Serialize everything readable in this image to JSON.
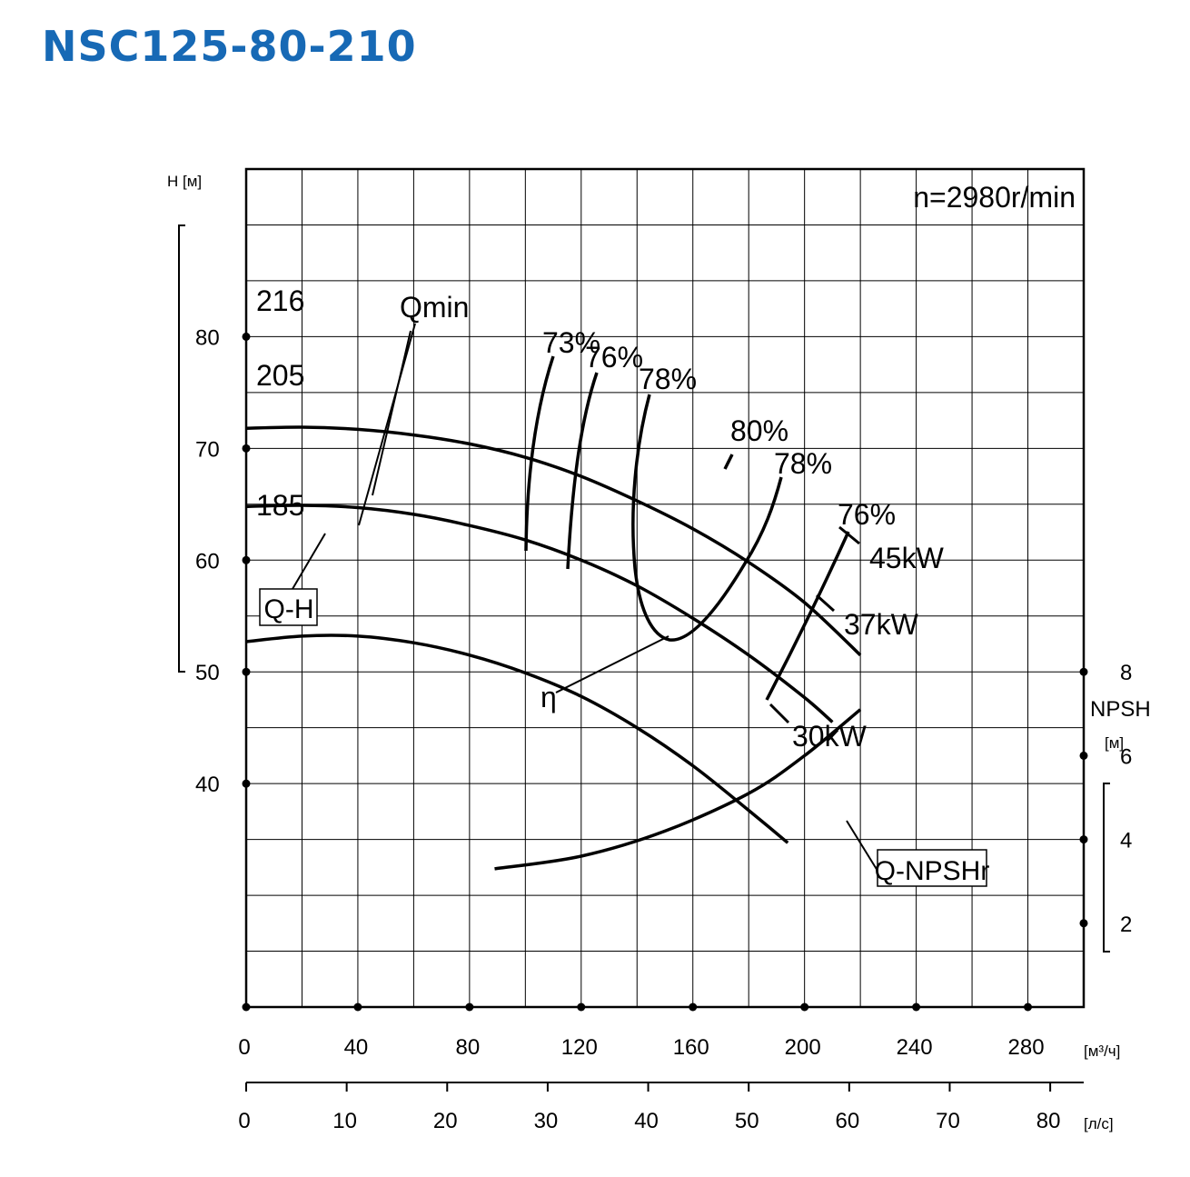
{
  "title": "NSC125-80-210",
  "chart_data": {
    "type": "line",
    "speed_note": "n=2980r/min",
    "xlabel_primary": "[м³/ч]",
    "xlabel_secondary": "[л/с]",
    "ylabel_head": "H [м]",
    "ylabel_npsh": "NPSH",
    "ylabel_npsh_unit": "[м]",
    "x_ticks_m3h": [
      0,
      40,
      80,
      120,
      160,
      200,
      240,
      280
    ],
    "x_ticks_ls": [
      0,
      10,
      20,
      30,
      40,
      50,
      60,
      70,
      80
    ],
    "y_ticks_head": [
      40,
      50,
      60,
      70,
      80
    ],
    "y_ticks_npsh": [
      2,
      4,
      6,
      8
    ],
    "xlim": [
      0,
      300
    ],
    "ylim_head": [
      20,
      95
    ],
    "ylim_npsh": [
      0,
      20
    ],
    "grid": true,
    "series": [
      {
        "name": "216",
        "x": [
          0,
          20,
          40,
          60,
          80,
          100,
          120,
          140,
          160,
          180,
          200,
          220
        ],
        "y": [
          71.8,
          71.9,
          71.7,
          71.2,
          70.4,
          69.2,
          67.5,
          65.3,
          62.8,
          59.8,
          56.2,
          51.5
        ]
      },
      {
        "name": "205",
        "x": [
          0,
          20,
          40,
          60,
          80,
          100,
          120,
          140,
          160,
          180,
          200,
          210
        ],
        "y": [
          64.8,
          64.9,
          64.7,
          64.1,
          63.1,
          61.8,
          60.0,
          57.7,
          54.8,
          51.5,
          47.7,
          45.5
        ]
      },
      {
        "name": "185",
        "x": [
          0,
          20,
          40,
          60,
          80,
          100,
          120,
          140,
          160,
          180,
          194
        ],
        "y": [
          52.7,
          53.2,
          53.2,
          52.6,
          51.5,
          49.9,
          47.8,
          45.0,
          41.6,
          37.6,
          34.7
        ]
      },
      {
        "name": "Q-NPSHr",
        "axis": "npsh",
        "x": [
          89,
          120,
          150,
          180,
          200,
          220
        ],
        "y": [
          3.3,
          3.6,
          4.2,
          5.1,
          6.0,
          7.1
        ]
      }
    ],
    "efficiency_labels": [
      "73%",
      "76%",
      "78%",
      "80%",
      "78%",
      "76%"
    ],
    "power_labels": [
      "45kW",
      "37kW",
      "30kW"
    ],
    "annotations": [
      "Qmin",
      "Q-H",
      "η",
      "Q-NPSHr"
    ]
  }
}
